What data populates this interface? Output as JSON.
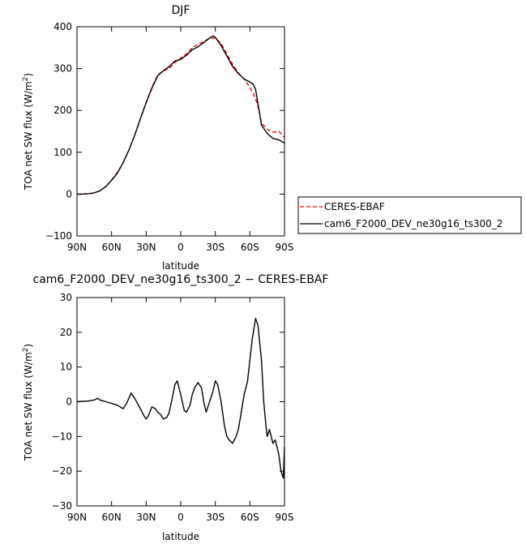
{
  "chart_data": [
    {
      "type": "line",
      "title": "DJF",
      "xlabel": "latitude",
      "ylabel_main": "TOA net SW flux (W/m",
      "ylabel_sup": "2",
      "ylabel_close": ")",
      "xlim": [
        90,
        -90
      ],
      "ylim": [
        -100,
        400
      ],
      "x_tick_values": [
        90,
        60,
        30,
        0,
        -30,
        -60,
        -90
      ],
      "x_tick_labels": [
        "90N",
        "60N",
        "30N",
        "0",
        "30S",
        "60S",
        "90S"
      ],
      "y_tick_values": [
        -100,
        0,
        100,
        200,
        300,
        400
      ],
      "y_tick_labels": [
        "−100",
        "0",
        "100",
        "200",
        "300",
        "400"
      ],
      "legend": {
        "placement": "right",
        "entries": [
          "CERES-EBAF",
          "cam6_F2000_DEV_ne30g16_ts300_2"
        ]
      },
      "series": [
        {
          "name": "CERES-EBAF",
          "color": "#ff0000",
          "dash": "dashed",
          "x": [
            90,
            85,
            80,
            75,
            70,
            65,
            60,
            55,
            50,
            45,
            40,
            35,
            30,
            25,
            20,
            15,
            10,
            5,
            0,
            -5,
            -10,
            -15,
            -20,
            -25,
            -30,
            -35,
            -40,
            -45,
            -50,
            -55,
            -60,
            -63,
            -65,
            -68,
            -70,
            -75,
            -80,
            -85,
            -88,
            -90
          ],
          "y": [
            0,
            0,
            1,
            3,
            8,
            18,
            34,
            52,
            75,
            105,
            140,
            180,
            220,
            255,
            285,
            295,
            300,
            315,
            325,
            335,
            350,
            358,
            365,
            372,
            373,
            360,
            335,
            310,
            290,
            275,
            255,
            240,
            228,
            200,
            170,
            155,
            148,
            150,
            142,
            135
          ]
        },
        {
          "name": "cam6_F2000_DEV_ne30g16_ts300_2",
          "color": "#000000",
          "dash": "solid",
          "x": [
            90,
            85,
            80,
            75,
            70,
            65,
            60,
            55,
            50,
            45,
            40,
            35,
            30,
            25,
            20,
            15,
            10,
            5,
            0,
            -5,
            -10,
            -15,
            -20,
            -25,
            -28,
            -30,
            -35,
            -40,
            -45,
            -50,
            -55,
            -60,
            -63,
            -65,
            -68,
            -70,
            -75,
            -80,
            -85,
            -88,
            -90
          ],
          "y": [
            0,
            0,
            1,
            3,
            8,
            18,
            33,
            50,
            75,
            105,
            140,
            180,
            218,
            253,
            283,
            295,
            305,
            318,
            322,
            332,
            345,
            352,
            362,
            373,
            378,
            375,
            355,
            330,
            305,
            288,
            275,
            268,
            262,
            250,
            200,
            165,
            145,
            133,
            130,
            125,
            122
          ]
        }
      ]
    },
    {
      "type": "line",
      "title": "cam6_F2000_DEV_ne30g16_ts300_2 − CERES-EBAF",
      "xlabel": "latitude",
      "ylabel_main": "TOA net SW flux (W/m",
      "ylabel_sup": "2",
      "ylabel_close": ")",
      "xlim": [
        90,
        -90
      ],
      "ylim": [
        -30,
        30
      ],
      "x_tick_values": [
        90,
        60,
        30,
        0,
        -30,
        -60,
        -90
      ],
      "x_tick_labels": [
        "90N",
        "60N",
        "30N",
        "0",
        "30S",
        "60S",
        "90S"
      ],
      "y_tick_values": [
        -30,
        -20,
        -10,
        0,
        10,
        20,
        30
      ],
      "y_tick_labels": [
        "−30",
        "−20",
        "−10",
        "0",
        "10",
        "20",
        "30"
      ],
      "series": [
        {
          "color": "#000000",
          "dash": "solid",
          "x": [
            90,
            80,
            75,
            72,
            70,
            65,
            60,
            55,
            50,
            47,
            45,
            43,
            40,
            35,
            32,
            30,
            28,
            25,
            22,
            20,
            18,
            15,
            12,
            10,
            8,
            5,
            3,
            0,
            -3,
            -5,
            -8,
            -10,
            -12,
            -15,
            -18,
            -20,
            -22,
            -25,
            -28,
            -30,
            -32,
            -35,
            -38,
            -40,
            -42,
            -45,
            -48,
            -50,
            -52,
            -55,
            -58,
            -60,
            -62,
            -64,
            -65,
            -67,
            -70,
            -72,
            -74,
            -75,
            -77,
            -80,
            -82,
            -85,
            -87,
            -89,
            -90
          ],
          "y": [
            0,
            0.2,
            0.5,
            1,
            0.5,
            0,
            -0.5,
            -1,
            -2,
            -0.5,
            1,
            2.5,
            1,
            -2,
            -4,
            -5,
            -4,
            -1.5,
            -2,
            -3,
            -3.5,
            -5,
            -4.5,
            -3,
            0,
            5,
            6,
            2,
            -2.5,
            -3,
            -1,
            2,
            4,
            5.5,
            4,
            0,
            -3,
            0,
            3,
            6,
            5,
            0,
            -7,
            -10,
            -11,
            -12,
            -10,
            -8,
            -4,
            2,
            6,
            12,
            18,
            22,
            24,
            22,
            12,
            0,
            -7,
            -10,
            -8,
            -12,
            -11,
            -15,
            -20,
            -22,
            -13
          ]
        }
      ]
    }
  ]
}
